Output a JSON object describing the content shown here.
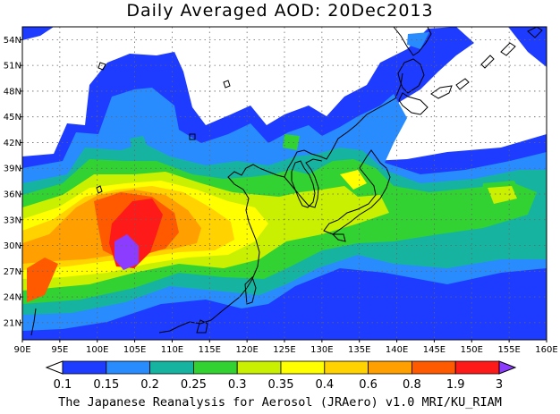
{
  "title": "Daily Averaged AOD: 20Dec2013",
  "credit": "The Japanese Reanalysis for Aerosol (JRAero) v1.0 MRI/KU_RIAM",
  "map": {
    "lon_range": [
      90,
      160
    ],
    "lat_range": [
      19,
      55.5
    ],
    "lon_ticks": [
      "90E",
      "95E",
      "100E",
      "105E",
      "110E",
      "115E",
      "120E",
      "125E",
      "130E",
      "135E",
      "140E",
      "145E",
      "150E",
      "155E",
      "160E"
    ],
    "lat_ticks": [
      "54N",
      "51N",
      "48N",
      "45N",
      "42N",
      "39N",
      "36N",
      "33N",
      "30N",
      "27N",
      "24N",
      "21N"
    ],
    "lat_tick_values": [
      54,
      51,
      48,
      45,
      42,
      39,
      36,
      33,
      30,
      27,
      24,
      21
    ],
    "grid": true
  },
  "colorbar": {
    "labels": [
      "0.1",
      "0.15",
      "0.2",
      "0.25",
      "0.3",
      "0.35",
      "0.4",
      "0.6",
      "0.8",
      "1.9",
      "3"
    ],
    "colors": [
      "#ffffff",
      "#1e3cff",
      "#288cff",
      "#16b4a0",
      "#32d232",
      "#c8f000",
      "#ffff00",
      "#ffd200",
      "#ffa000",
      "#ff5a00",
      "#ff1a1a",
      "#8c3cff"
    ]
  }
}
